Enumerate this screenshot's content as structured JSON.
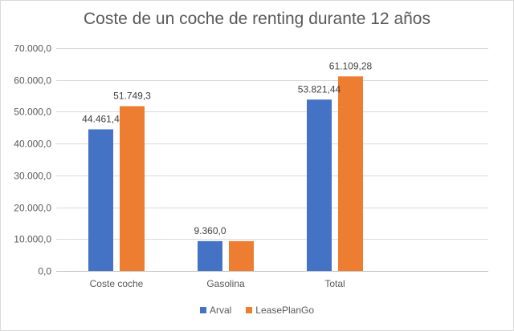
{
  "chart_data": {
    "type": "bar",
    "title": "Coste de un coche de renting durante 12 años",
    "categories": [
      "Coste coche",
      "Gasolina",
      "Total"
    ],
    "series": [
      {
        "name": "Arval",
        "color": "#4472C4",
        "values": [
          44461.4,
          9360.0,
          53821.44
        ],
        "labels": [
          "44.461,4",
          "9.360,0",
          "53.821,44"
        ]
      },
      {
        "name": "LeasePlanGo",
        "color": "#ED7D31",
        "values": [
          51749.3,
          9360.0,
          61109.28
        ],
        "labels": [
          "51.749,3",
          "",
          "61.109,28"
        ]
      }
    ],
    "ylim": [
      0,
      70000
    ],
    "yticks": [
      0,
      10000,
      20000,
      30000,
      40000,
      50000,
      60000,
      70000
    ],
    "ytick_labels": [
      "0,0",
      "10.000,0",
      "20.000,0",
      "30.000,0",
      "40.000,0",
      "50.000,0",
      "60.000,0",
      "70.000,0"
    ],
    "grid": true,
    "legend_position": "bottom"
  }
}
